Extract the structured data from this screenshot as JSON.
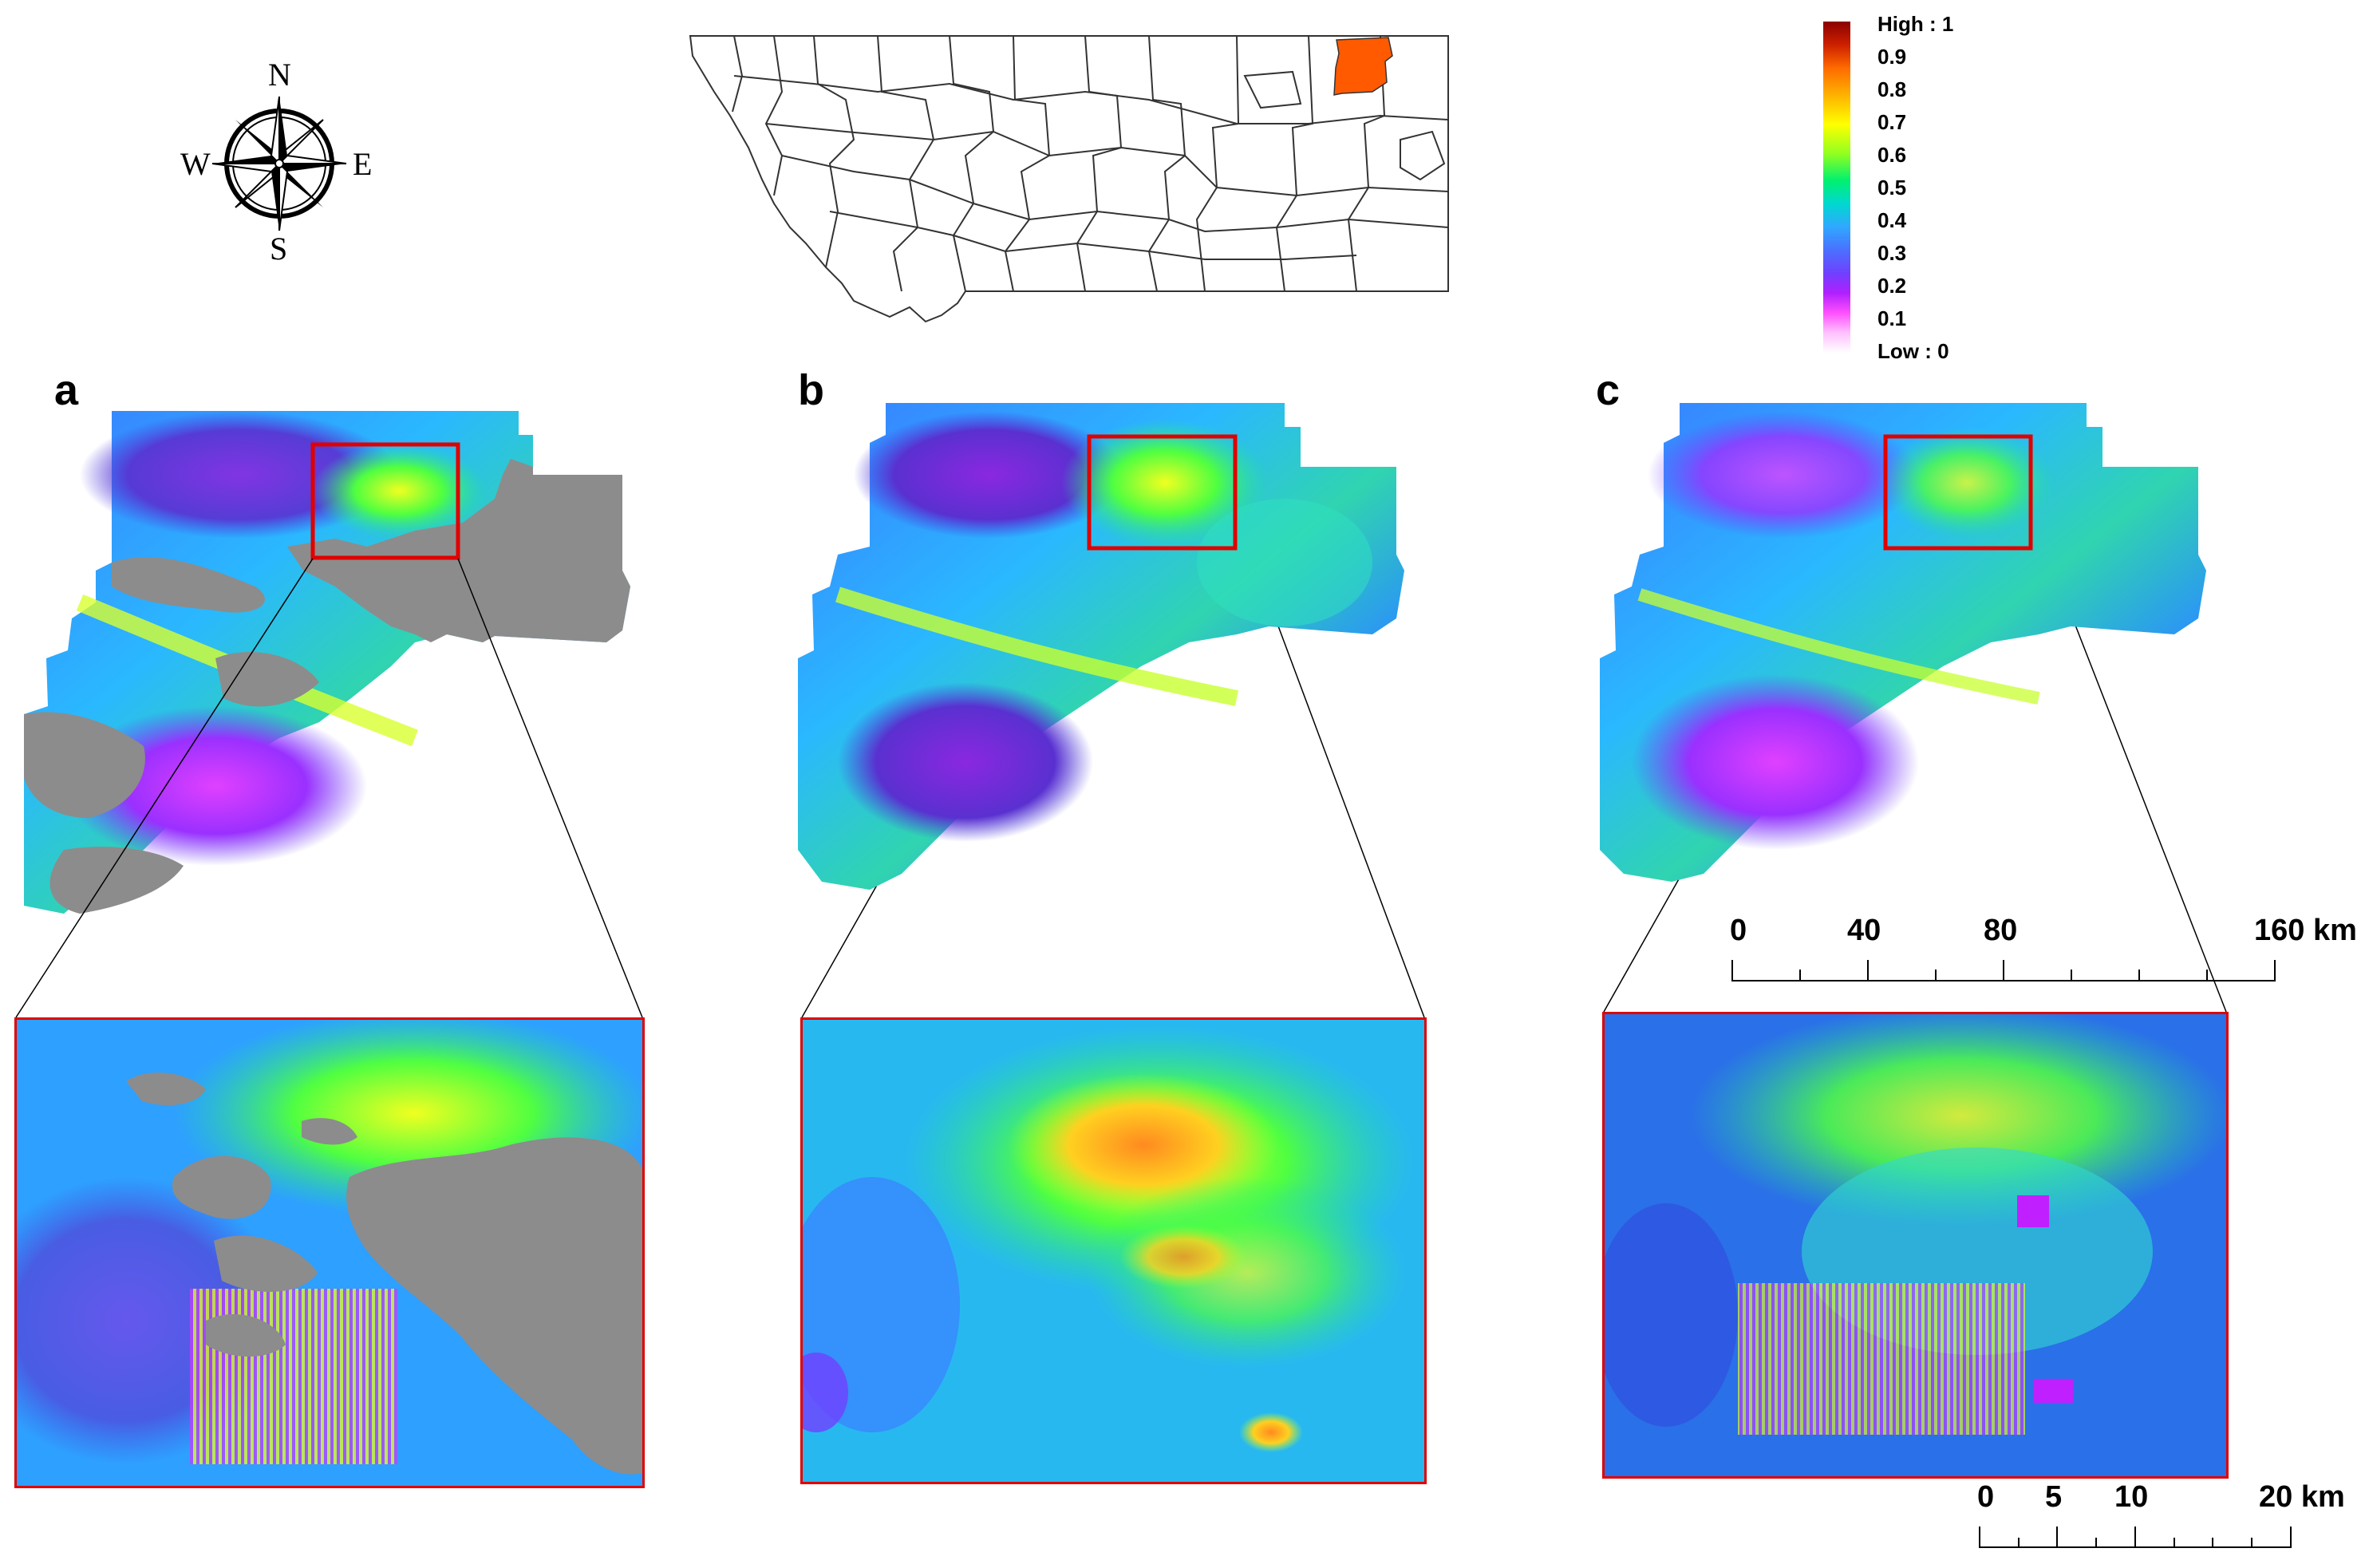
{
  "panels": [
    {
      "id": "a",
      "label": "a"
    },
    {
      "id": "b",
      "label": "b"
    },
    {
      "id": "c",
      "label": "c"
    }
  ],
  "compass": {
    "n": "N",
    "s": "S",
    "e": "E",
    "w": "W"
  },
  "legend": {
    "high": "High : 1",
    "low": "Low : 0",
    "ticks": [
      "0.9",
      "0.8",
      "0.7",
      "0.6",
      "0.5",
      "0.4",
      "0.3",
      "0.2",
      "0.1"
    ],
    "colors": [
      "#8b0000",
      "#cc3300",
      "#ff9900",
      "#ffff00",
      "#66ff33",
      "#00e080",
      "#20c0ff",
      "#3080ff",
      "#6040ff",
      "#b020ff",
      "#ff60ff",
      "#ffd0ff",
      "#ffffff"
    ]
  },
  "scalebar_large": {
    "labels": [
      "0",
      "40",
      "80",
      "160 km"
    ]
  },
  "scalebar_small": {
    "labels": [
      "0",
      "5",
      "10",
      "20 km"
    ]
  },
  "colors": {
    "highlight_county": "#ff5a00",
    "inset_frame": "#e00000",
    "masked": "#8c8c8c"
  }
}
